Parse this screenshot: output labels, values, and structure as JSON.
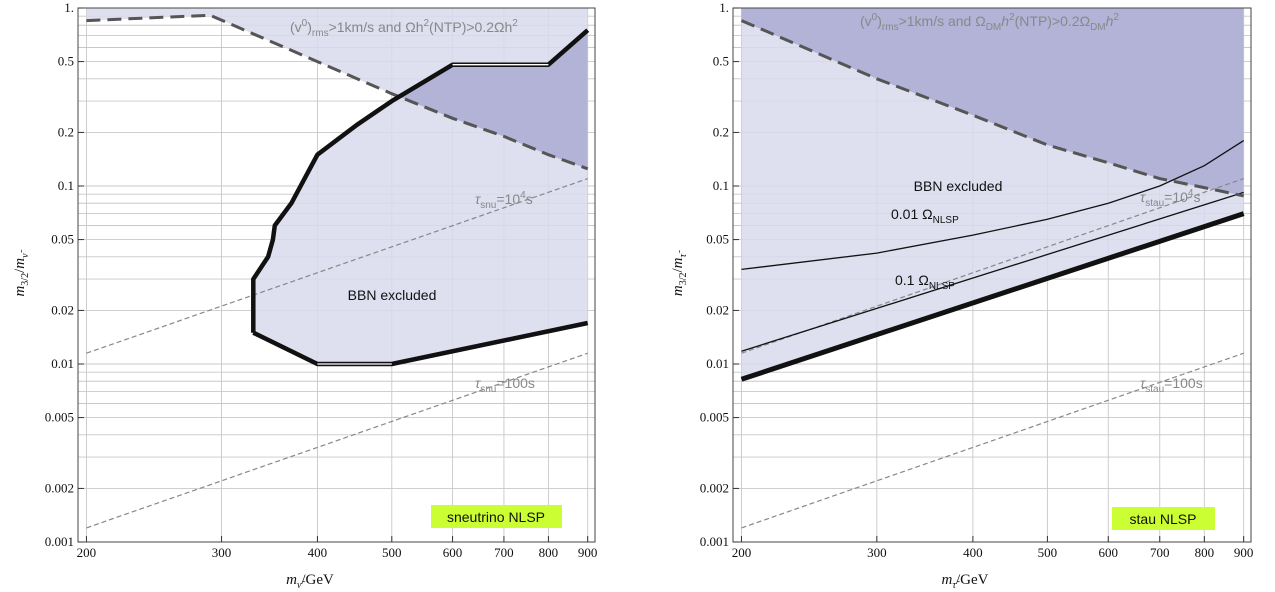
{
  "chart_data": [
    {
      "type": "area",
      "xscale": "log",
      "yscale": "log",
      "xlim": [
        195,
        920
      ],
      "ylim": [
        0.001,
        1
      ],
      "xticks": [
        200,
        300,
        400,
        500,
        600,
        700,
        800,
        900
      ],
      "xtick_labels": [
        "200",
        "300",
        "400",
        "500",
        "600",
        "700",
        "800",
        "900"
      ],
      "yticks": [
        0.001,
        0.002,
        0.005,
        0.01,
        0.02,
        0.05,
        0.1,
        0.2,
        0.5,
        1
      ],
      "ytick_labels": [
        "0.001",
        "0.002",
        "0.005",
        "0.01",
        "0.02",
        "0.05",
        "0.1",
        "0.2",
        "0.5",
        "1."
      ],
      "xlabel": "m_ν̃/GeV",
      "ylabel": "m_3/2/m_ν̃",
      "colors": {
        "region_light": "#d8d9ec",
        "region_dark": "#adaed4",
        "boundary": "#111111",
        "dashed_boundary": "#555555",
        "lifetime": "#888888",
        "badge": "#ccff33"
      },
      "regions": [
        {
          "name": "BBN excluded",
          "boundary": [
            [
              330,
              0.015
            ],
            [
              330,
              0.03
            ],
            [
              345,
              0.04
            ],
            [
              350,
              0.05
            ],
            [
              352,
              0.06
            ],
            [
              370,
              0.08
            ],
            [
              400,
              0.15
            ],
            [
              450,
              0.22
            ],
            [
              500,
              0.3
            ],
            [
              600,
              0.48
            ],
            [
              800,
              0.48
            ],
            [
              900,
              0.75
            ],
            [
              900,
              0.017
            ],
            [
              500,
              0.01
            ],
            [
              400,
              0.01
            ],
            [
              330,
              0.015
            ]
          ]
        },
        {
          "name": "rms velocity bound",
          "boundary": [
            [
              200,
              0.85
            ],
            [
              290,
              0.91
            ],
            [
              400,
              0.5
            ],
            [
              500,
              0.33
            ],
            [
              600,
              0.24
            ],
            [
              700,
              0.19
            ],
            [
              800,
              0.15
            ],
            [
              900,
              0.125
            ],
            [
              900,
              1
            ],
            [
              200,
              1
            ]
          ]
        }
      ],
      "lifetime_lines": [
        {
          "label_sub": "snu",
          "label_pow": "4",
          "points": [
            [
              200,
              0.0115
            ],
            [
              900,
              0.11
            ]
          ]
        },
        {
          "label_sub": "snu",
          "label_pow": "",
          "points": [
            [
              200,
              0.0012
            ],
            [
              900,
              0.0115
            ]
          ]
        }
      ],
      "labels": {
        "region": "BBN excluded",
        "tau_high_sym": "τ",
        "tau_high_sub": "snu",
        "tau_high_val": "=10",
        "tau_high_pow": "4",
        "tau_high_unit": "s",
        "tau_low_sym": "τ",
        "tau_low_sub": "snu",
        "tau_low_val": "=100s",
        "bound_a": "(v",
        "bound_a_sup": "0",
        "bound_b": ")",
        "bound_b_sub": "rms",
        "bound_c": ">1km/s and Ωh",
        "bound_c_sup": "2",
        "bound_d": "(NTP)>0.2Ωh",
        "bound_d_sup": "2",
        "badge": "sneutrino NLSP"
      }
    },
    {
      "type": "area",
      "xscale": "log",
      "yscale": "log",
      "xlim": [
        195,
        920
      ],
      "ylim": [
        0.001,
        1
      ],
      "xticks": [
        200,
        300,
        400,
        500,
        600,
        700,
        800,
        900
      ],
      "xtick_labels": [
        "200",
        "300",
        "400",
        "500",
        "600",
        "700",
        "800",
        "900"
      ],
      "yticks": [
        0.001,
        0.002,
        0.005,
        0.01,
        0.02,
        0.05,
        0.1,
        0.2,
        0.5,
        1
      ],
      "ytick_labels": [
        "0.001",
        "0.002",
        "0.005",
        "0.01",
        "0.02",
        "0.05",
        "0.1",
        "0.2",
        "0.5",
        "1."
      ],
      "xlabel": "m_τ̃/GeV",
      "ylabel": "m_3/2/m_τ̃",
      "colors": {
        "region_light": "#d8d9ec",
        "region_dark": "#adaed4",
        "boundary": "#111111",
        "dashed_boundary": "#555555",
        "lifetime": "#888888",
        "badge": "#ccff33"
      },
      "regions": [
        {
          "name": "BBN excluded",
          "boundary": [
            [
              200,
              0.0082
            ],
            [
              900,
              0.07
            ],
            [
              900,
              1
            ],
            [
              200,
              1
            ]
          ]
        },
        {
          "name": "rms velocity bound",
          "boundary": [
            [
              200,
              0.85
            ],
            [
              300,
              0.4
            ],
            [
              400,
              0.25
            ],
            [
              500,
              0.17
            ],
            [
              600,
              0.135
            ],
            [
              700,
              0.11
            ],
            [
              800,
              0.098
            ],
            [
              900,
              0.088
            ],
            [
              900,
              1
            ],
            [
              200,
              1
            ]
          ]
        }
      ],
      "omega_lines": [
        {
          "label": "0.01",
          "points": [
            [
              200,
              0.034
            ],
            [
              300,
              0.042
            ],
            [
              400,
              0.053
            ],
            [
              500,
              0.065
            ],
            [
              600,
              0.08
            ],
            [
              700,
              0.1
            ],
            [
              800,
              0.13
            ],
            [
              900,
              0.18
            ]
          ]
        },
        {
          "label": "0.1",
          "points": [
            [
              200,
              0.0118
            ],
            [
              900,
              0.092
            ]
          ]
        }
      ],
      "lifetime_lines": [
        {
          "label_sub": "stau",
          "label_pow": "4",
          "points": [
            [
              200,
              0.0115
            ],
            [
              900,
              0.11
            ]
          ]
        },
        {
          "label_sub": "stau",
          "label_pow": "",
          "points": [
            [
              200,
              0.0012
            ],
            [
              900,
              0.0115
            ]
          ]
        }
      ],
      "labels": {
        "region": "BBN excluded",
        "omega_a_val": "0.01 Ω",
        "omega_a_sub": "NLSP",
        "omega_b_val": "0.1 Ω",
        "omega_b_sub": "NLSP",
        "tau_high_sym": "τ",
        "tau_high_sub": "stau",
        "tau_high_val": "=10",
        "tau_high_pow": "4",
        "tau_high_unit": "s",
        "tau_low_sym": "τ",
        "tau_low_sub": "stau",
        "tau_low_val": "=100s",
        "bound_a": "(v",
        "bound_a_sup": "0",
        "bound_b": ")",
        "bound_b_sub": "rms",
        "bound_c": ">1km/s and Ω",
        "bound_c_sub": "DM",
        "bound_c2": "h",
        "bound_c_sup": "2",
        "bound_d": "(NTP)>0.2Ω",
        "bound_d_sub": "DM",
        "bound_d2": "h",
        "bound_d_sup": "2",
        "badge": "stau NLSP"
      }
    }
  ]
}
